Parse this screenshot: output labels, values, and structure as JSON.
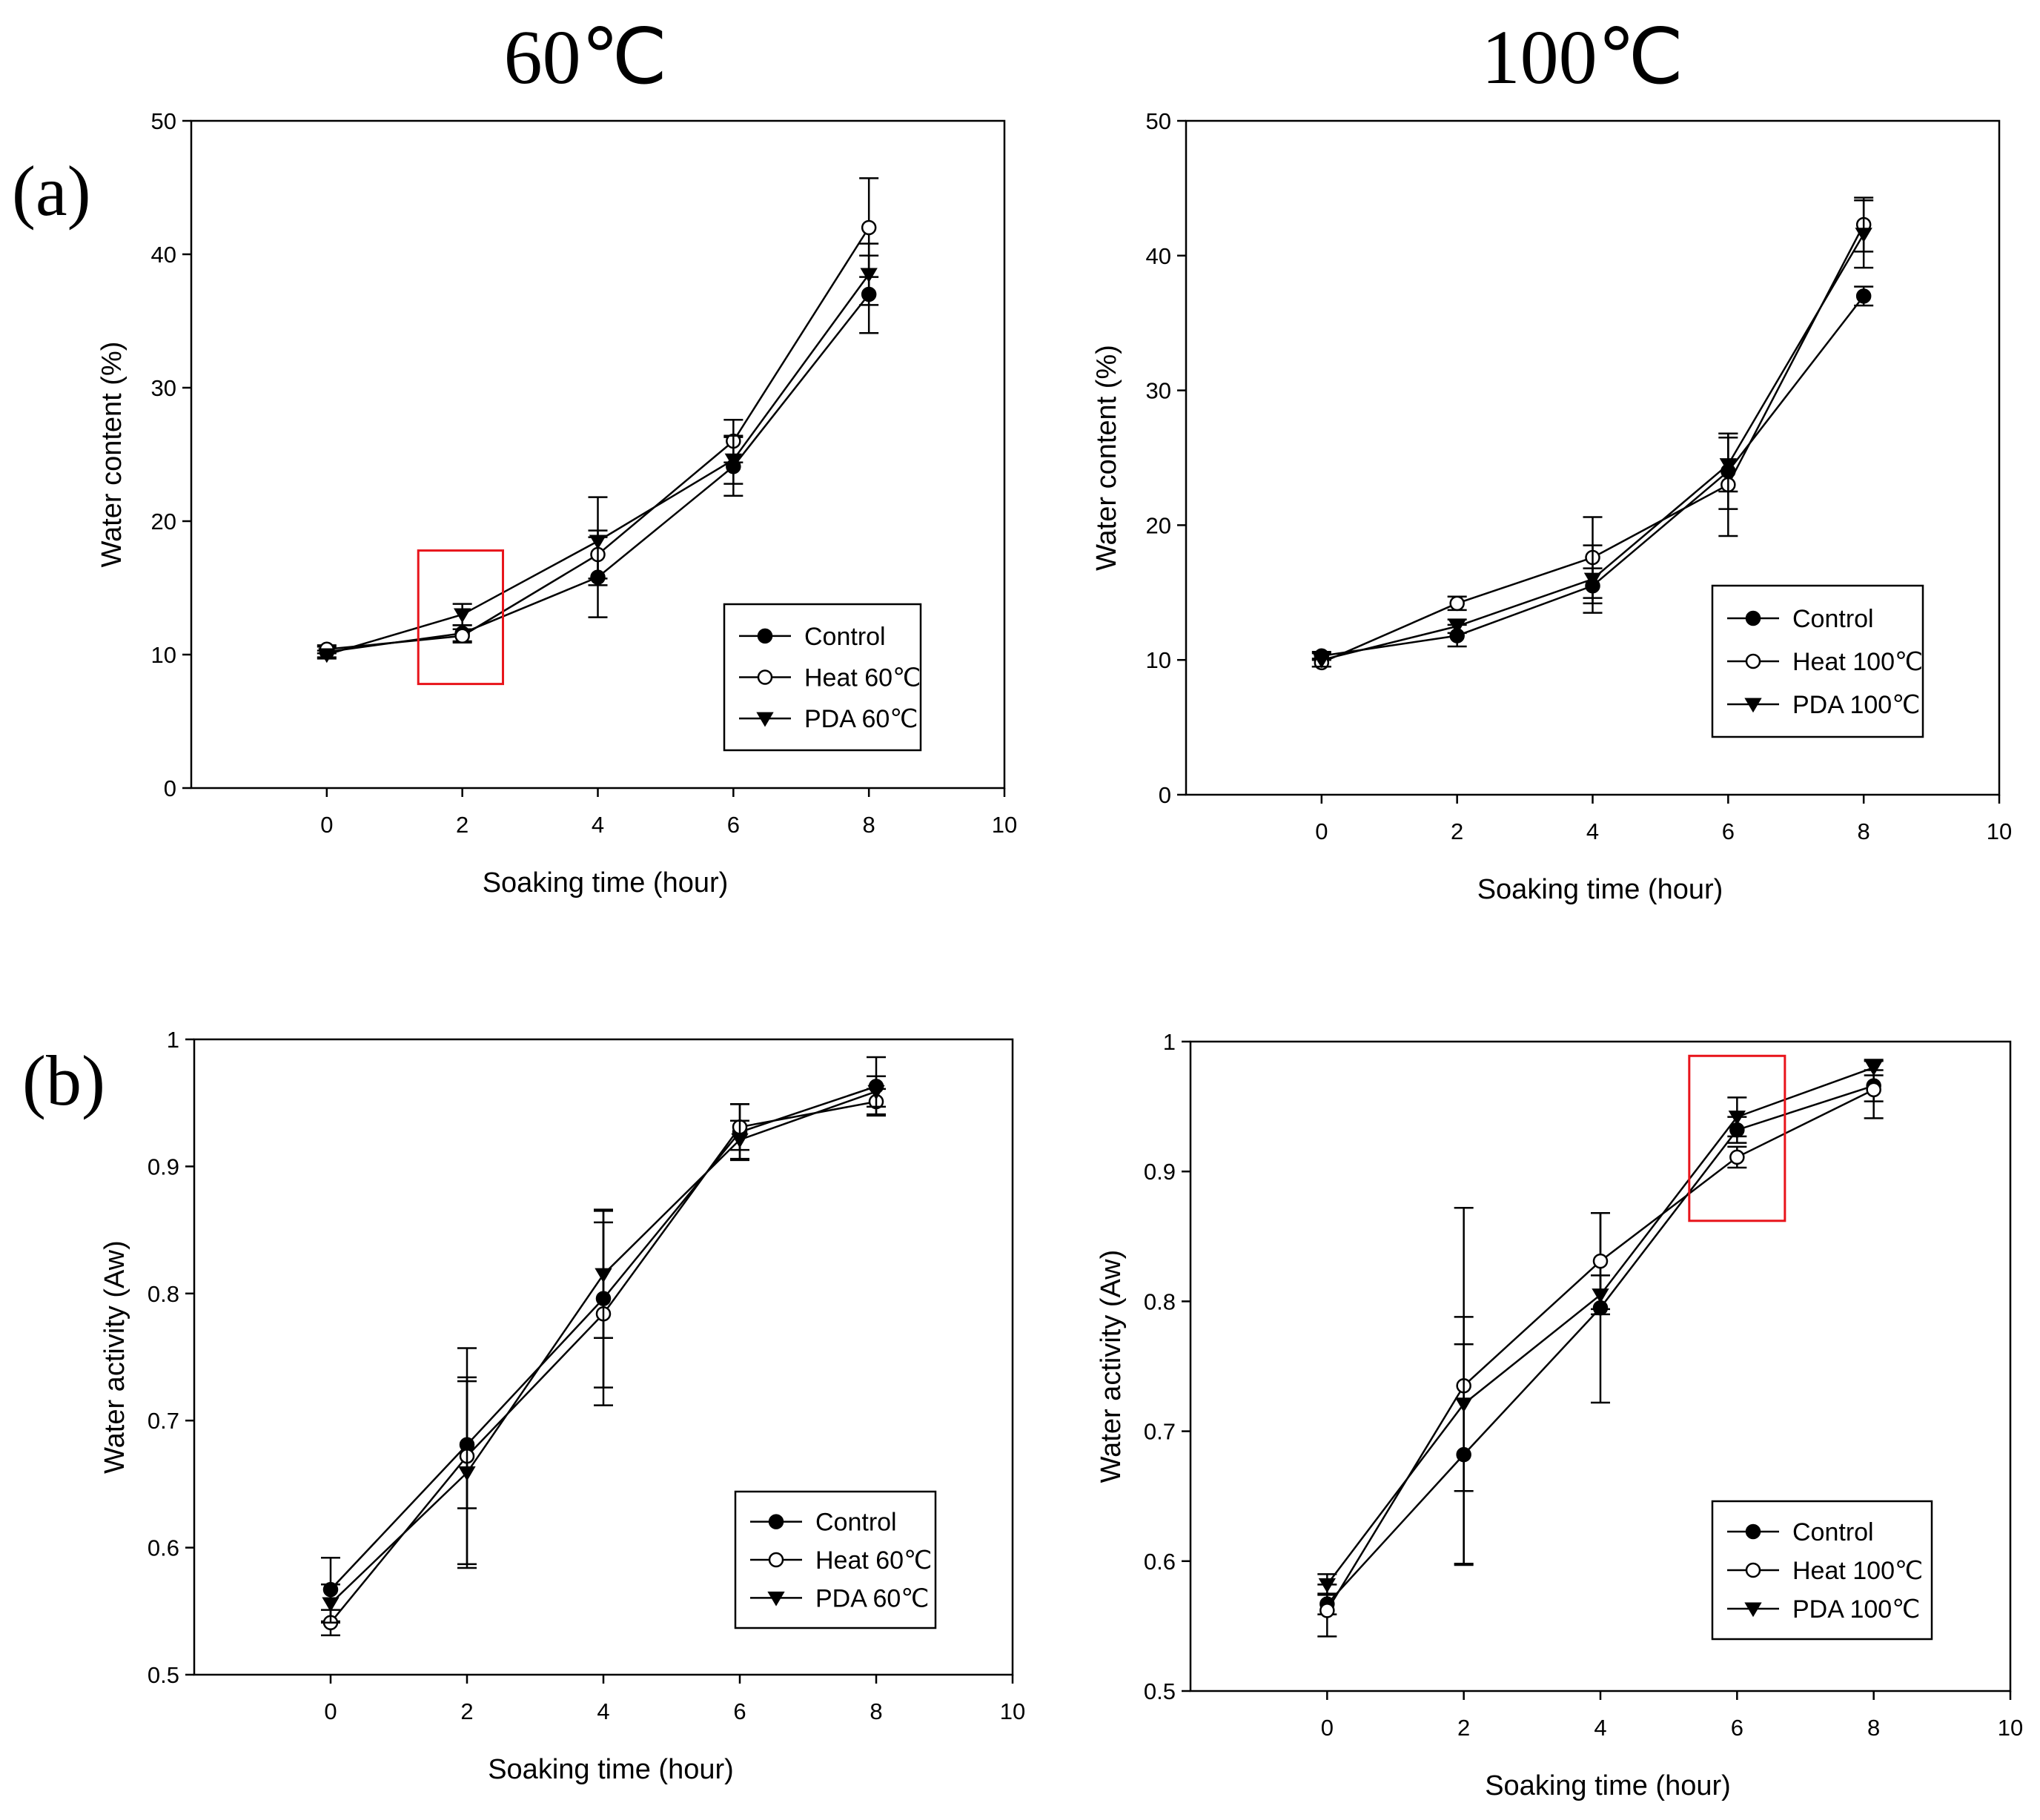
{
  "column_titles": [
    "60℃",
    "100℃"
  ],
  "row_labels": [
    "(a)",
    "(b)"
  ],
  "chart_data": [
    {
      "type": "line",
      "panel": "(a)",
      "column": "60℃",
      "xlabel": "Soaking time (hour)",
      "ylabel": "Water content (%)",
      "xlim": [
        -2,
        10
      ],
      "ylim": [
        0,
        50
      ],
      "xticks": [
        0,
        2,
        4,
        6,
        8,
        10
      ],
      "yticks": [
        0,
        10,
        20,
        30,
        40,
        50
      ],
      "x": [
        0,
        2,
        4,
        6,
        8
      ],
      "legend_position": "lower-right",
      "highlight": {
        "x_range": [
          1.35,
          2.6
        ],
        "y_range": [
          7.8,
          17.8
        ],
        "color": "#e8141b"
      },
      "series": [
        {
          "name": "Control",
          "marker": "circle-filled",
          "values": [
            10.2,
            11.6,
            15.8,
            24.1,
            37.0
          ],
          "errors": [
            0.4,
            0.6,
            3.0,
            2.2,
            2.9
          ]
        },
        {
          "name": "Heat 60℃",
          "marker": "circle-open",
          "values": [
            10.4,
            11.4,
            17.5,
            26.0,
            42.0
          ],
          "errors": [
            0.3,
            0.5,
            1.8,
            1.6,
            3.7
          ]
        },
        {
          "name": "PDA 60℃",
          "marker": "triangle-down-filled",
          "values": [
            10.0,
            13.0,
            18.5,
            24.6,
            38.5
          ],
          "errors": [
            0.3,
            0.8,
            3.3,
            1.8,
            2.3
          ]
        }
      ]
    },
    {
      "type": "line",
      "panel": "(a)",
      "column": "100℃",
      "xlabel": "Soaking time (hour)",
      "ylabel": "Water content (%)",
      "xlim": [
        -2,
        10
      ],
      "ylim": [
        0,
        50
      ],
      "xticks": [
        0,
        2,
        4,
        6,
        8,
        10
      ],
      "yticks": [
        0,
        10,
        20,
        30,
        40,
        50
      ],
      "x": [
        0,
        2,
        4,
        6,
        8
      ],
      "legend_position": "lower-right",
      "series": [
        {
          "name": "Control",
          "marker": "circle-filled",
          "values": [
            10.3,
            11.8,
            15.5,
            24.0,
            37.0
          ],
          "errors": [
            0.3,
            0.8,
            1.3,
            2.8,
            0.7
          ]
        },
        {
          "name": "Heat 100℃",
          "marker": "circle-open",
          "values": [
            9.8,
            14.2,
            17.6,
            23.0,
            42.3
          ],
          "errors": [
            0.3,
            0.5,
            3.0,
            3.8,
            2.0
          ]
        },
        {
          "name": "PDA 100℃",
          "marker": "triangle-down-filled",
          "values": [
            10.0,
            12.5,
            16.0,
            24.5,
            41.6
          ],
          "errors": [
            0.5,
            0.5,
            2.5,
            2.0,
            2.5
          ]
        }
      ]
    },
    {
      "type": "line",
      "panel": "(b)",
      "column": "60℃",
      "xlabel": "Soaking time (hour)",
      "ylabel": "Water activity (Aw)",
      "xlim": [
        -2,
        10
      ],
      "ylim": [
        0.5,
        1.0
      ],
      "xticks": [
        0,
        2,
        4,
        6,
        8,
        10
      ],
      "yticks": [
        0.5,
        0.6,
        0.7,
        0.8,
        0.9,
        1.0
      ],
      "x": [
        0,
        2,
        4,
        6,
        8
      ],
      "legend_position": "lower-right",
      "series": [
        {
          "name": "Control",
          "marker": "circle-filled",
          "values": [
            0.567,
            0.681,
            0.796,
            0.927,
            0.963
          ],
          "errors": [
            0.025,
            0.05,
            0.07,
            0.022,
            0.023
          ]
        },
        {
          "name": "Heat 60℃",
          "marker": "circle-open",
          "values": [
            0.541,
            0.672,
            0.784,
            0.931,
            0.951
          ],
          "errors": [
            0.01,
            0.085,
            0.072,
            0.018,
            0.01
          ]
        },
        {
          "name": "PDA 60℃",
          "marker": "triangle-down-filled",
          "values": [
            0.556,
            0.659,
            0.815,
            0.921,
            0.959
          ],
          "errors": [
            0.015,
            0.075,
            0.05,
            0.015,
            0.012
          ]
        }
      ]
    },
    {
      "type": "line",
      "panel": "(b)",
      "column": "100℃",
      "xlabel": "Soaking time (hour)",
      "ylabel": "Water activity (Aw)",
      "xlim": [
        -2,
        10
      ],
      "ylim": [
        0.5,
        1.0
      ],
      "xticks": [
        0,
        2,
        4,
        6,
        8,
        10
      ],
      "yticks": [
        0.5,
        0.6,
        0.7,
        0.8,
        0.9,
        1.0
      ],
      "x": [
        0,
        2,
        4,
        6,
        8
      ],
      "legend_position": "lower-right",
      "highlight": {
        "x_range": [
          5.3,
          6.7
        ],
        "y_range": [
          0.862,
          0.989
        ],
        "color": "#e8141b"
      },
      "series": [
        {
          "name": "Control",
          "marker": "circle-filled",
          "values": [
            0.567,
            0.682,
            0.795,
            0.932,
            0.966
          ],
          "errors": [
            0.008,
            0.085,
            0.073,
            0.01,
            0.012
          ]
        },
        {
          "name": "Heat 100℃",
          "marker": "circle-open",
          "values": [
            0.562,
            0.735,
            0.831,
            0.911,
            0.963
          ],
          "errors": [
            0.02,
            0.137,
            0.037,
            0.008,
            0.022
          ]
        },
        {
          "name": "PDA 100℃",
          "marker": "triangle-down-filled",
          "values": [
            0.582,
            0.721,
            0.805,
            0.942,
            0.98
          ],
          "errors": [
            0.008,
            0.067,
            0.015,
            0.015,
            0.006
          ]
        }
      ]
    }
  ]
}
